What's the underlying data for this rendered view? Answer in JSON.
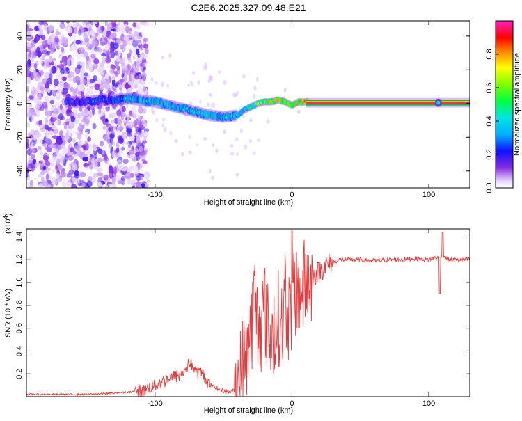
{
  "figure_title": "C2E6.2025.327.09.48.E21",
  "colors": {
    "snr_line": "#e83a3a",
    "frame": "#000000",
    "background": "#ffffff",
    "ridge_core": "#ff3030",
    "ridge_outer": "#00b050"
  },
  "chart_data": [
    {
      "type": "heatmap",
      "title": "",
      "xlabel": "Height of straight line (km)",
      "ylabel": "Frequency (Hz)",
      "xlim": [
        -194,
        130
      ],
      "ylim": [
        -50,
        49
      ],
      "x_ticks": [
        -100,
        0,
        100
      ],
      "x_tick_labels": [
        "-100",
        "0",
        "100"
      ],
      "y_ticks": [
        -40,
        -20,
        0,
        20,
        40
      ],
      "y_tick_labels": [
        "-40",
        "-20",
        "0",
        "20",
        "40"
      ],
      "colorbar": {
        "label": "Normalized spectral amplitude",
        "range": [
          0,
          1
        ],
        "ticks": [
          0,
          0.2,
          0.4,
          0.6,
          0.8
        ],
        "tick_labels": [
          "0.0",
          "0.2",
          "0.4",
          "0.6",
          "0.8"
        ],
        "colormap": "rainbow (purple-blue-cyan-green-yellow-red-magenta)"
      },
      "noise_region_x": [
        -194,
        -112
      ],
      "ridge": {
        "x": [
          -150,
          -140,
          -130,
          -120,
          -110,
          -100,
          -90,
          -80,
          -70,
          -60,
          -50,
          -40,
          -35,
          -30,
          -25,
          -20,
          -15,
          -10,
          -5,
          0,
          5,
          10,
          20,
          40,
          60,
          80,
          100,
          105,
          110,
          120,
          130
        ],
        "freq": [
          1,
          2,
          2,
          3,
          2,
          1,
          -1,
          -3,
          -5,
          -7,
          -8,
          -7,
          -4,
          -2,
          0,
          1,
          1,
          2,
          1,
          -1,
          1,
          1,
          0.5,
          0.5,
          0.5,
          0.5,
          0.5,
          0.5,
          0.5,
          0.5,
          0.5
        ],
        "amplitude": [
          0.25,
          0.3,
          0.35,
          0.4,
          0.45,
          0.5,
          0.45,
          0.45,
          0.45,
          0.5,
          0.45,
          0.45,
          0.5,
          0.6,
          0.75,
          0.85,
          0.9,
          0.9,
          0.95,
          0.9,
          0.95,
          1.0,
          1.0,
          1.0,
          1.0,
          1.0,
          1.0,
          1.0,
          1.0,
          1.0,
          1.0
        ]
      }
    },
    {
      "type": "line",
      "title": "",
      "xlabel": "Height of straight line (km)",
      "ylabel": "SNR (10 * v/v)",
      "y_multiplier_label": "(x10",
      "y_multiplier_exp": "4",
      "y_multiplier_close": ")",
      "xlim": [
        -194,
        130
      ],
      "ylim": [
        0,
        1.47
      ],
      "x_ticks": [
        -100,
        0,
        100
      ],
      "x_tick_labels": [
        "-100",
        "0",
        "100"
      ],
      "y_ticks": [
        0.2,
        0.4,
        0.6,
        0.8,
        1.0,
        1.2,
        1.4
      ],
      "y_tick_labels": [
        "0.2",
        "0.4",
        "0.6",
        "0.8",
        "1.0",
        "1.2",
        "1.4"
      ],
      "series": [
        {
          "name": "SNR",
          "x": [
            -194,
            -170,
            -150,
            -130,
            -110,
            -100,
            -90,
            -80,
            -75,
            -70,
            -65,
            -60,
            -50,
            -45,
            -40,
            -35,
            -30,
            -27,
            -25,
            -22,
            -20,
            -17,
            -15,
            -12,
            -10,
            -7,
            -5,
            -2,
            0,
            2,
            5,
            7,
            10,
            15,
            20,
            25,
            30,
            35,
            40,
            50,
            60,
            70,
            80,
            90,
            100,
            105,
            108,
            110,
            112,
            115,
            120,
            130
          ],
          "y": [
            0.02,
            0.02,
            0.02,
            0.03,
            0.05,
            0.1,
            0.16,
            0.2,
            0.3,
            0.22,
            0.2,
            0.1,
            0.05,
            0.04,
            0.07,
            0.35,
            0.55,
            0.9,
            0.6,
            0.7,
            0.8,
            0.55,
            0.5,
            0.65,
            0.7,
            0.6,
            0.85,
            0.7,
            0.8,
            0.85,
            0.95,
            0.9,
            1.0,
            1.05,
            1.1,
            1.15,
            1.18,
            1.2,
            1.2,
            1.2,
            1.19,
            1.2,
            1.2,
            1.21,
            1.2,
            1.22,
            1.22,
            1.25,
            1.22,
            1.2,
            1.2,
            1.2
          ]
        }
      ]
    }
  ]
}
